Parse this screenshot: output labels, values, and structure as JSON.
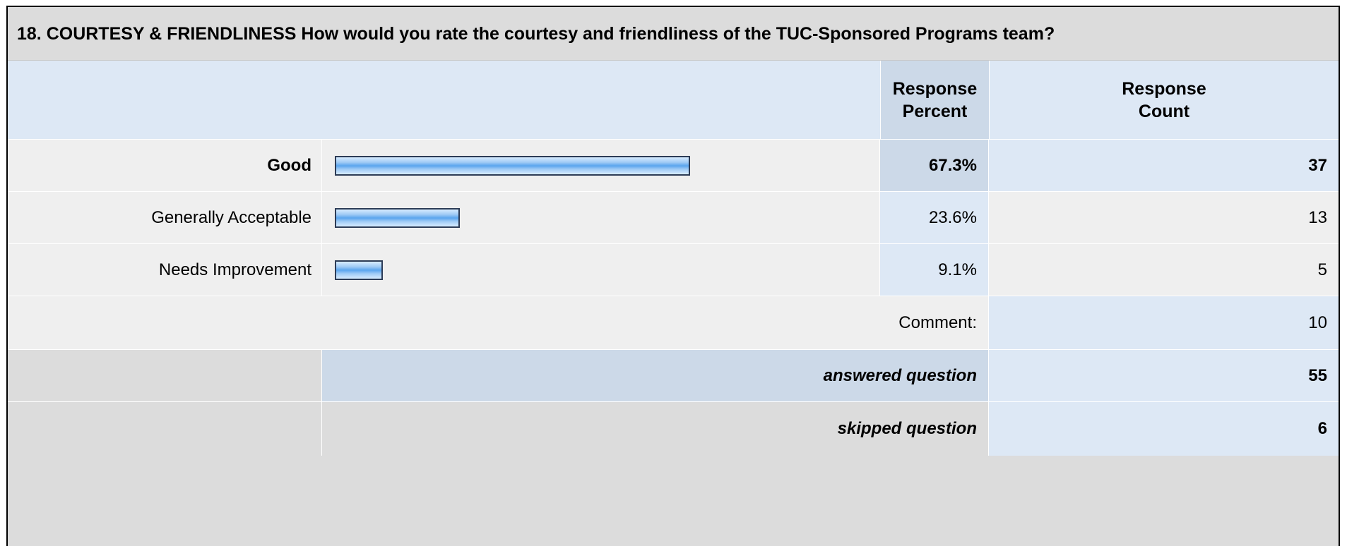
{
  "question": "18. COURTESY & FRIENDLINESS How would you rate the courtesy and friendliness of the TUC-Sponsored Programs team?",
  "headers": {
    "percent_line1": "Response",
    "percent_line2": "Percent",
    "count_line1": "Response",
    "count_line2": "Count"
  },
  "rows": [
    {
      "label": "Good",
      "percent": "67.3%",
      "count": "37"
    },
    {
      "label": "Generally Acceptable",
      "percent": "23.6%",
      "count": "13"
    },
    {
      "label": "Needs Improvement",
      "percent": "9.1%",
      "count": "5"
    }
  ],
  "comment": {
    "label": "Comment:",
    "count": "10"
  },
  "answered": {
    "label": "answered question",
    "count": "55"
  },
  "skipped": {
    "label": "skipped question",
    "count": "6"
  },
  "colors": {
    "bar_fill": "#5aa5ee",
    "bar_border": "#2d3c56",
    "header_bg": "#dde8f5",
    "title_bg": "#dcdcdc",
    "row_bg": "#efefef",
    "value_bg": "#dde8f5",
    "highlight_bg": "#ccd9e8"
  },
  "chart_data": {
    "type": "bar",
    "categories": [
      "Good",
      "Generally Acceptable",
      "Needs Improvement"
    ],
    "values": [
      67.3,
      23.6,
      9.1
    ],
    "counts": [
      37,
      13,
      5
    ],
    "title": "18. COURTESY & FRIENDLINESS How would you rate the courtesy and friendliness of the TUC-Sponsored Programs team?",
    "xlabel": "",
    "ylabel": "",
    "orientation": "horizontal",
    "ylim": [
      0,
      100
    ]
  }
}
